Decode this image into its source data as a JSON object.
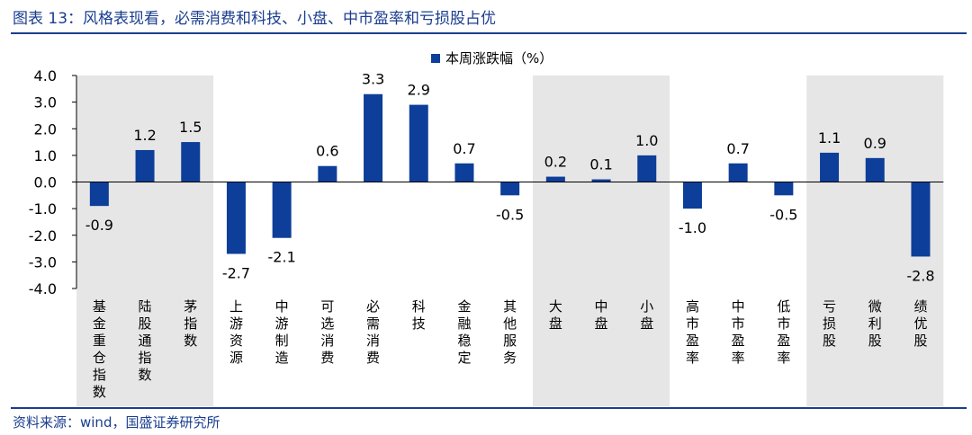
{
  "figure": {
    "title": "图表 13：风格表现看，必需消费和科技、小盘、中市盈率和亏损股占优",
    "source": "资料来源：wind，国盛证券研究所"
  },
  "colors": {
    "bar": "#0d3e99",
    "band": "#e6e6e6",
    "accent": "#1a3d8f"
  },
  "chart_data": {
    "type": "bar",
    "title": "",
    "xlabel": "",
    "ylabel": "",
    "ylim": [
      -4.0,
      4.0
    ],
    "yticks": [
      "4.0",
      "3.0",
      "2.0",
      "1.0",
      "0.0",
      "-1.0",
      "-2.0",
      "-3.0",
      "-4.0"
    ],
    "legend": "本周涨跌幅（%）",
    "legend_position": "top-center",
    "grid": false,
    "categories": [
      "基金重仓指数",
      "陆股通指数",
      "茅指数",
      "上游资源",
      "中游制造",
      "可选消费",
      "必需消费",
      "科技",
      "金融稳定",
      "其他服务",
      "大盘",
      "中盘",
      "小盘",
      "高市盈率",
      "中市盈率",
      "低市盈率",
      "亏损股",
      "微利股",
      "绩优股"
    ],
    "values": [
      -0.9,
      1.2,
      1.5,
      -2.7,
      -2.1,
      0.6,
      3.3,
      2.9,
      0.7,
      -0.5,
      0.2,
      0.1,
      1.0,
      -1.0,
      0.7,
      -0.5,
      1.1,
      0.9,
      -2.8
    ],
    "value_labels": [
      "-0.9",
      "1.2",
      "1.5",
      "-2.7",
      "-2.1",
      "0.6",
      "3.3",
      "2.9",
      "0.7",
      "-0.5",
      "0.2",
      "0.1",
      "1.0",
      "-1.0",
      "0.7",
      "-0.5",
      "1.1",
      "0.9",
      "-2.8"
    ],
    "shaded_groups": [
      [
        0,
        2
      ],
      [
        10,
        12
      ],
      [
        16,
        18
      ]
    ]
  }
}
